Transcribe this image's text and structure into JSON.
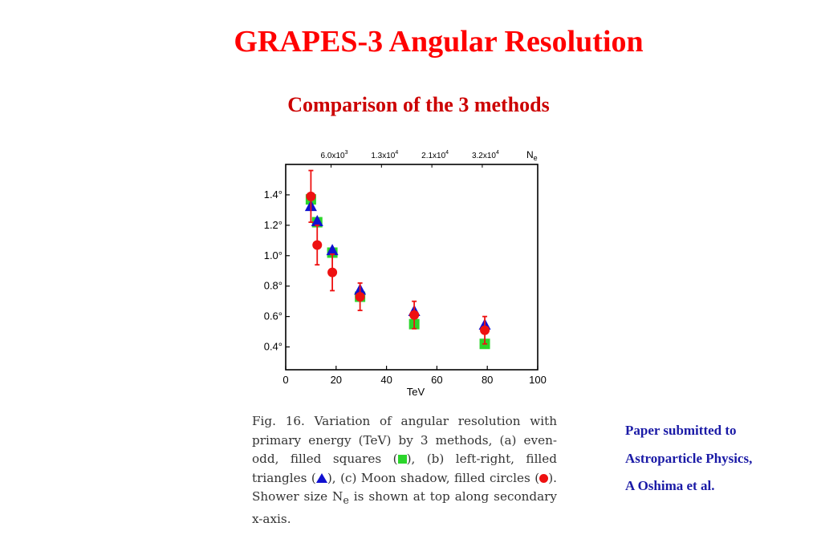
{
  "slide": {
    "title": "GRAPES-3 Angular Resolution",
    "subtitle": "Comparison of the 3 methods"
  },
  "caption": {
    "part1": "Fig. 16. Variation of angular resolution with primary energy (TeV) by 3 methods, (a) even-odd, filled squares (",
    "part2": "), (b) left-right, filled triangles (",
    "part3": "), (c) Moon shadow, filled circles (",
    "part4": "). Shower size N",
    "part4_sub": "e",
    "part5": " is shown at top along secondary x-axis."
  },
  "note": {
    "line1": "Paper submitted to",
    "line2": "Astroparticle Physics,",
    "line3": "A Oshima et al."
  },
  "chart_data": {
    "type": "scatter",
    "xlabel": "TeV",
    "xlim": [
      0,
      100
    ],
    "ylim": [
      0.25,
      1.6
    ],
    "x_ticks": [
      0,
      20,
      40,
      60,
      80,
      100
    ],
    "x_tick_labels": [
      "0",
      "20",
      "40",
      "60",
      "80",
      "100"
    ],
    "y_ticks": [
      0.4,
      0.6,
      0.8,
      1.0,
      1.2,
      1.4
    ],
    "y_tick_labels": [
      "0.4°",
      "0.6°",
      "0.8°",
      "1.0°",
      "1.2°",
      "1.4°"
    ],
    "secondary_xlabel": "Ne",
    "secondary_ticks": [
      {
        "x": 18,
        "label": "6.0x10",
        "exp": "3"
      },
      {
        "x": 38,
        "label": "1.3x10",
        "exp": "4"
      },
      {
        "x": 58,
        "label": "2.1x10",
        "exp": "4"
      },
      {
        "x": 78,
        "label": "3.2x10",
        "exp": "4"
      }
    ],
    "series": [
      {
        "marker": "square",
        "color": "#2bd62b",
        "points": [
          {
            "x": 10,
            "y": 1.37
          },
          {
            "x": 12.5,
            "y": 1.22
          },
          {
            "x": 18.5,
            "y": 1.02
          },
          {
            "x": 29.5,
            "y": 0.73
          },
          {
            "x": 51,
            "y": 0.55
          },
          {
            "x": 79,
            "y": 0.42
          }
        ]
      },
      {
        "marker": "triangle",
        "color": "#1010d0",
        "points": [
          {
            "x": 10,
            "y": 1.32
          },
          {
            "x": 12.5,
            "y": 1.22
          },
          {
            "x": 18.5,
            "y": 1.03
          },
          {
            "x": 29.5,
            "y": 0.77
          },
          {
            "x": 51,
            "y": 0.63
          },
          {
            "x": 79,
            "y": 0.54
          }
        ]
      },
      {
        "marker": "circle",
        "color": "#ee1111",
        "points": [
          {
            "x": 10,
            "y": 1.39,
            "err": 0.17
          },
          {
            "x": 12.5,
            "y": 1.07,
            "err": 0.13
          },
          {
            "x": 18.5,
            "y": 0.89,
            "err": 0.12
          },
          {
            "x": 29.5,
            "y": 0.73,
            "err": 0.09
          },
          {
            "x": 51,
            "y": 0.61,
            "err": 0.09
          },
          {
            "x": 79,
            "y": 0.51,
            "err": 0.09
          }
        ]
      }
    ]
  }
}
